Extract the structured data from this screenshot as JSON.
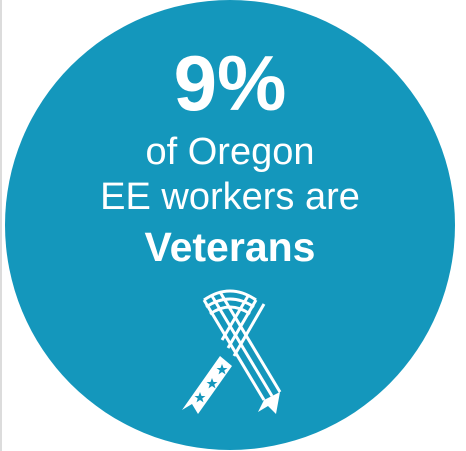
{
  "infographic": {
    "percent": "9%",
    "line1": "of Oregon",
    "line2": "EE workers are",
    "emphasis": "Veterans",
    "icon": "ribbon-icon",
    "colors": {
      "circle": "#1497bc",
      "text": "#ffffff",
      "background": "#ffffff"
    }
  }
}
